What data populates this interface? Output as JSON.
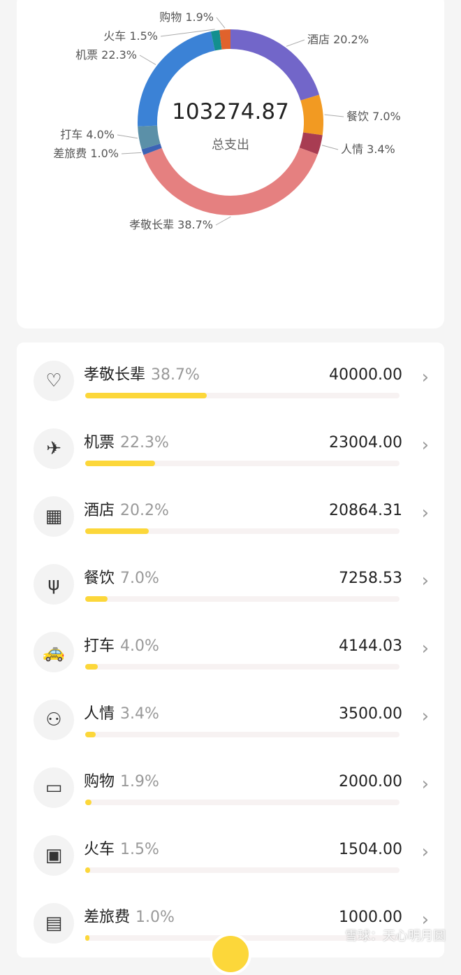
{
  "summary": {
    "total": "103274.87",
    "total_label": "总支出"
  },
  "chart_data": {
    "type": "pie",
    "donut": true,
    "slices": [
      {
        "name": "酒店",
        "percent": 20.2,
        "color": "#7266c9"
      },
      {
        "name": "餐饮",
        "percent": 7.0,
        "color": "#f29a22"
      },
      {
        "name": "人情",
        "percent": 3.4,
        "color": "#a83c52"
      },
      {
        "name": "孝敬长辈",
        "percent": 38.7,
        "color": "#e58080"
      },
      {
        "name": "差旅费",
        "percent": 1.0,
        "color": "#3c63b5"
      },
      {
        "name": "打车",
        "percent": 4.0,
        "color": "#5b90a8"
      },
      {
        "name": "机票",
        "percent": 22.3,
        "color": "#3b82d6"
      },
      {
        "name": "火车",
        "percent": 1.5,
        "color": "#138f8f"
      },
      {
        "name": "购物",
        "percent": 1.9,
        "color": "#e0622c"
      }
    ],
    "labels": [
      "酒店 20.2%",
      "餐饮 7.0%",
      "人情 3.4%",
      "孝敬长辈 38.7%",
      "差旅费 1.0%",
      "打车 4.0%",
      "机票 22.3%",
      "火车 1.5%",
      "购物 1.9%"
    ]
  },
  "categories": [
    {
      "name": "孝敬长辈",
      "percent": "38.7%",
      "amount": "40000.00",
      "icon": "heart-hand-icon",
      "fill": 38.7
    },
    {
      "name": "机票",
      "percent": "22.3%",
      "amount": "23004.00",
      "icon": "airplane-icon",
      "fill": 22.3
    },
    {
      "name": "酒店",
      "percent": "20.2%",
      "amount": "20864.31",
      "icon": "building-icon",
      "fill": 20.2
    },
    {
      "name": "餐饮",
      "percent": "7.0%",
      "amount": "7258.53",
      "icon": "fork-spoon-icon",
      "fill": 7.0
    },
    {
      "name": "打车",
      "percent": "4.0%",
      "amount": "4144.03",
      "icon": "taxi-icon",
      "fill": 4.0
    },
    {
      "name": "人情",
      "percent": "3.4%",
      "amount": "3500.00",
      "icon": "person-exchange-icon",
      "fill": 3.4
    },
    {
      "name": "购物",
      "percent": "1.9%",
      "amount": "2000.00",
      "icon": "shopping-bag-icon",
      "fill": 1.9
    },
    {
      "name": "火车",
      "percent": "1.5%",
      "amount": "1504.00",
      "icon": "train-icon",
      "fill": 1.5
    },
    {
      "name": "差旅费",
      "percent": "1.0%",
      "amount": "1000.00",
      "icon": "suitcase-icon",
      "fill": 1.0
    }
  ],
  "watermark": "雪球：天心明月圆"
}
